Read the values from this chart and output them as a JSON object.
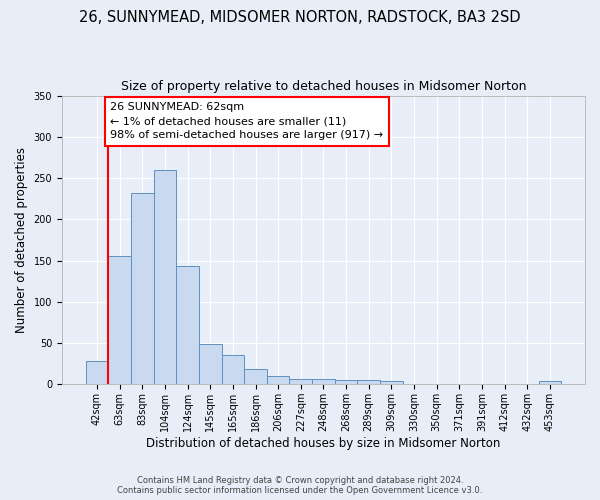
{
  "title": "26, SUNNYMEAD, MIDSOMER NORTON, RADSTOCK, BA3 2SD",
  "subtitle": "Size of property relative to detached houses in Midsomer Norton",
  "xlabel": "Distribution of detached houses by size in Midsomer Norton",
  "ylabel": "Number of detached properties",
  "bin_labels": [
    "42sqm",
    "63sqm",
    "83sqm",
    "104sqm",
    "124sqm",
    "145sqm",
    "165sqm",
    "186sqm",
    "206sqm",
    "227sqm",
    "248sqm",
    "268sqm",
    "289sqm",
    "309sqm",
    "330sqm",
    "350sqm",
    "371sqm",
    "391sqm",
    "412sqm",
    "432sqm",
    "453sqm"
  ],
  "bar_values": [
    28,
    155,
    232,
    260,
    144,
    49,
    35,
    18,
    10,
    6,
    6,
    5,
    5,
    4,
    0,
    0,
    0,
    0,
    0,
    0,
    4
  ],
  "bar_color": "#c9d9f0",
  "bar_edge_color": "#6090c0",
  "ylim": [
    0,
    350
  ],
  "yticks": [
    0,
    50,
    100,
    150,
    200,
    250,
    300,
    350
  ],
  "property_line_label": "26 SUNNYMEAD: 62sqm",
  "annotation_line1": "← 1% of detached houses are smaller (11)",
  "annotation_line2": "98% of semi-detached houses are larger (917) →",
  "footer1": "Contains HM Land Registry data © Crown copyright and database right 2024.",
  "footer2": "Contains public sector information licensed under the Open Government Licence v3.0.",
  "background_color": "#e8eef8",
  "plot_bg_color": "#e8eef8",
  "grid_color": "#ffffff",
  "title_fontsize": 10.5,
  "subtitle_fontsize": 9,
  "ylabel_fontsize": 8.5,
  "xlabel_fontsize": 8.5,
  "tick_fontsize": 7,
  "annotation_fontsize": 8,
  "footer_fontsize": 6
}
